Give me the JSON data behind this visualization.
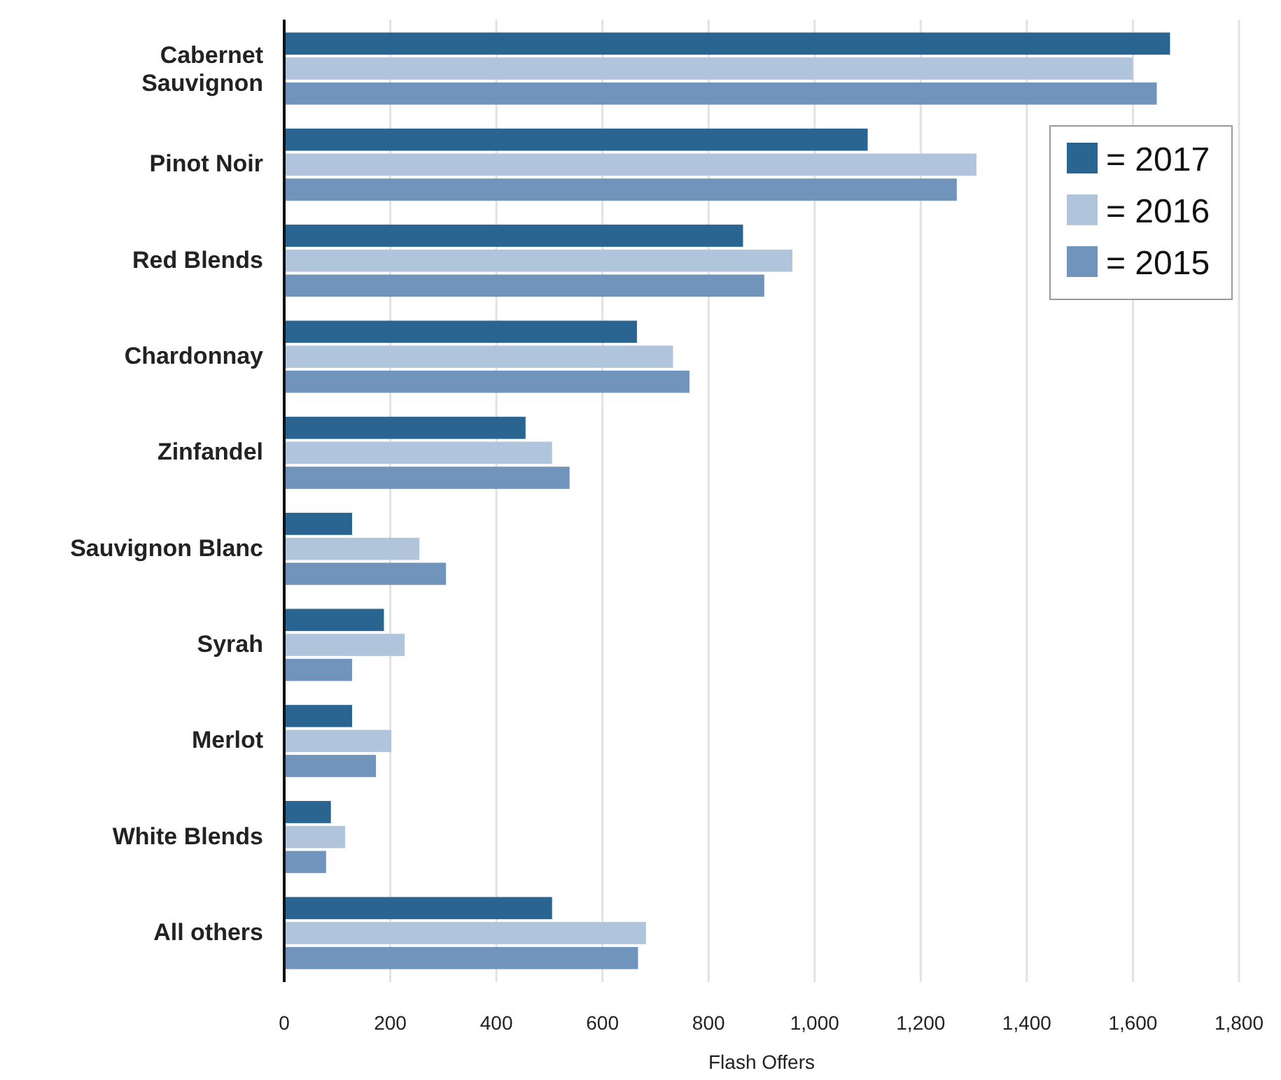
{
  "chart_data": {
    "type": "bar",
    "orientation": "horizontal",
    "xlabel": "Flash Offers",
    "categories": [
      "Cabernet\nSauvignon",
      "Pinot Noir",
      "Red Blends",
      "Chardonnay",
      "Zinfandel",
      "Sauvignon Blanc",
      "Syrah",
      "Merlot",
      "White Blends",
      "All others"
    ],
    "series": [
      {
        "name": "= 2017",
        "color": "#2a6592",
        "values": [
          1670,
          1100,
          865,
          665,
          455,
          128,
          188,
          128,
          88,
          505
        ]
      },
      {
        "name": "= 2016",
        "color": "#b0c4dc",
        "values": [
          1600,
          1305,
          958,
          733,
          505,
          255,
          227,
          202,
          115,
          682
        ]
      },
      {
        "name": "= 2015",
        "color": "#7094bb",
        "values": [
          1645,
          1268,
          905,
          764,
          538,
          305,
          128,
          173,
          79,
          667
        ]
      }
    ],
    "xlim": [
      0,
      1800
    ],
    "xticks": [
      0,
      {
        "value": 200,
        "label": "200"
      },
      400,
      600,
      800,
      {
        "value": 1000,
        "label": "1,000"
      },
      {
        "value": 1200,
        "label": "1,200"
      },
      {
        "value": 1400,
        "label": "1,400"
      },
      {
        "value": 1600,
        "label": "1,600"
      },
      {
        "value": 1800,
        "label": "1,800"
      }
    ],
    "grid": "x",
    "legend": "top right"
  }
}
